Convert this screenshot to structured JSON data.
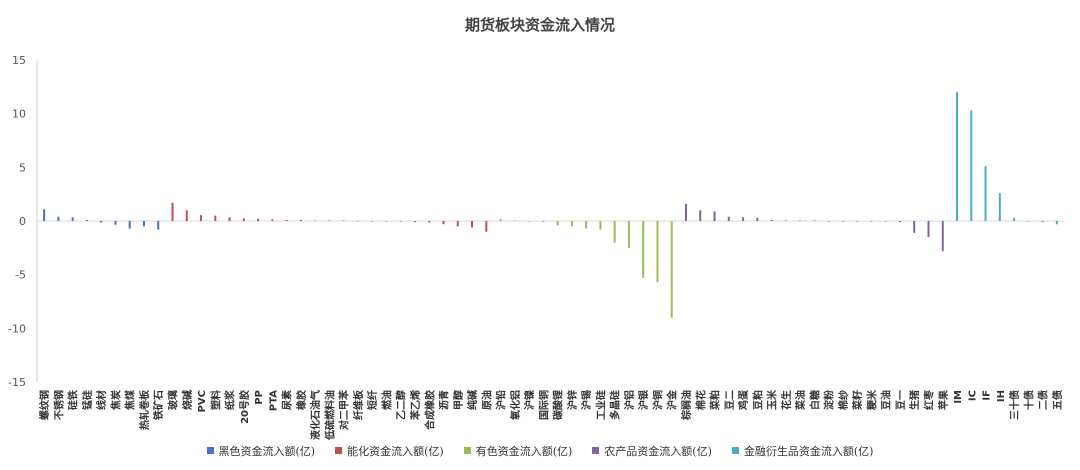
{
  "chart_data": {
    "type": "bar",
    "title": "期货板块资金流入情况",
    "ylim": [
      -15,
      15
    ],
    "yticks": [
      15,
      10,
      5,
      0,
      -5,
      -10,
      -15
    ],
    "grid": false,
    "legend_position": "bottom",
    "series": [
      {
        "name": "黑色资金流入额(亿)",
        "color": "#4472C4",
        "categories": [
          "螺纹钢",
          "不锈钢",
          "硅铁",
          "锰硅",
          "线材",
          "焦炭",
          "焦煤",
          "热轧卷板",
          "铁矿石"
        ],
        "values": [
          1.1,
          0.4,
          0.35,
          0.1,
          -0.15,
          -0.35,
          -0.7,
          -0.5,
          -0.8
        ]
      },
      {
        "name": "能化资金流入额(亿)",
        "color": "#C0504D",
        "categories": [
          "玻璃",
          "烧碱",
          "PVC",
          "塑料",
          "纸浆",
          "20号胶",
          "PP",
          "PTA",
          "尿素",
          "橡胶",
          "液化石油气",
          "低硫燃料油",
          "对二甲苯",
          "纤维板",
          "短纤",
          "燃油",
          "乙二醇",
          "苯乙烯",
          "合成橡胶",
          "沥青",
          "甲醇",
          "纯碱",
          "原油"
        ],
        "values": [
          1.7,
          1.0,
          0.55,
          0.5,
          0.35,
          0.25,
          0.2,
          0.15,
          0.1,
          0.1,
          0.05,
          0.05,
          0.05,
          0.02,
          0.0,
          0.0,
          -0.05,
          -0.1,
          -0.15,
          -0.3,
          -0.5,
          -0.6,
          -1.0
        ]
      },
      {
        "name": "有色资金流入额(亿)",
        "color": "#9BBB59",
        "categories": [
          "沪铅",
          "氧化铝",
          "沪镍",
          "国际铜",
          "碳酸锂",
          "沪锌",
          "沪锡",
          "工业硅",
          "多晶硅",
          "沪铝",
          "沪银",
          "沪铜",
          "沪金"
        ],
        "values": [
          0.2,
          0.05,
          0.0,
          -0.1,
          -0.4,
          -0.5,
          -0.7,
          -0.8,
          -2.0,
          -2.5,
          -5.3,
          -5.7,
          -9.0
        ]
      },
      {
        "name": "农产品资金流入额(亿)",
        "color": "#8064A2",
        "categories": [
          "棕榈油",
          "棉花",
          "菜粕",
          "豆二",
          "鸡蛋",
          "豆粕",
          "玉米",
          "花生",
          "菜油",
          "白糖",
          "淀粉",
          "棉纱",
          "菜籽",
          "粳米",
          "豆油",
          "豆一",
          "生猪",
          "红枣",
          "苹果"
        ],
        "values": [
          1.6,
          1.0,
          0.9,
          0.4,
          0.35,
          0.3,
          0.1,
          0.05,
          0.05,
          0.05,
          0.0,
          0.0,
          0.0,
          0.0,
          0.0,
          -0.1,
          -1.1,
          -1.5,
          -2.8
        ]
      },
      {
        "name": "金融衍生品资金流入额(亿)",
        "color": "#4BACC6",
        "categories": [
          "IM",
          "IC",
          "IF",
          "IH",
          "三十债",
          "十债",
          "二债",
          "五债"
        ],
        "values": [
          12.0,
          10.3,
          5.1,
          2.6,
          0.3,
          0.0,
          -0.1,
          -0.3
        ]
      }
    ]
  }
}
